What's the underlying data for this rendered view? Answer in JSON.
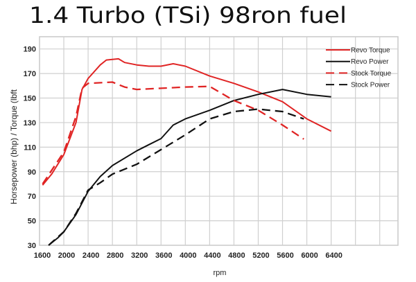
{
  "chart_data": {
    "type": "line",
    "title": "1.4 Turbo (TSi) 98ron fuel",
    "xlabel": "rpm",
    "ylabel": "Horsepower (bhp) / Torque (lbft",
    "xlim": [
      1600,
      7500
    ],
    "ylim": [
      30,
      200
    ],
    "xticks": [
      1600,
      2000,
      2400,
      2800,
      3200,
      3600,
      4000,
      4400,
      4800,
      5200,
      5600,
      6000,
      6400
    ],
    "yticks": [
      30,
      50,
      70,
      90,
      110,
      130,
      150,
      170,
      190
    ],
    "grid": true,
    "legend_position": "top-right",
    "series": [
      {
        "name": "Revo Torque",
        "color": "#e02424",
        "dash": false,
        "x": [
          1650,
          1800,
          2000,
          2200,
          2300,
          2400,
          2600,
          2700,
          2900,
          3000,
          3200,
          3400,
          3600,
          3800,
          4000,
          4400,
          4800,
          5200,
          5600,
          6000,
          6400
        ],
        "y": [
          79,
          88,
          104,
          130,
          157,
          166,
          177,
          181,
          182,
          179,
          177,
          176,
          176,
          178,
          176,
          168,
          162,
          155,
          147,
          133,
          123
        ]
      },
      {
        "name": "Revo Power",
        "color": "#111111",
        "dash": false,
        "x": [
          1750,
          1900,
          2000,
          2200,
          2400,
          2600,
          2800,
          3200,
          3400,
          3600,
          3800,
          4000,
          4400,
          4800,
          5200,
          5600,
          6000,
          6400
        ],
        "y": [
          30,
          36,
          41,
          55,
          74,
          86,
          95,
          107,
          112,
          117,
          128,
          133,
          140,
          148,
          153,
          157,
          153,
          151
        ]
      },
      {
        "name": "Stock Torque",
        "color": "#e02424",
        "dash": true,
        "x": [
          1650,
          2000,
          2200,
          2300,
          2400,
          2800,
          3000,
          3200,
          3600,
          4000,
          4400,
          4800,
          5200,
          5600,
          5950
        ],
        "y": [
          80,
          106,
          135,
          158,
          162,
          163,
          159,
          157,
          158,
          159,
          159.5,
          148,
          140,
          128,
          116.5
        ]
      },
      {
        "name": "Stock Power",
        "color": "#111111",
        "dash": true,
        "x": [
          1750,
          2000,
          2200,
          2400,
          2600,
          2800,
          3200,
          3600,
          4000,
          4400,
          4800,
          5200,
          5600,
          5950
        ],
        "y": [
          30,
          41,
          56,
          75,
          81,
          88,
          96,
          108,
          120,
          133,
          139,
          141,
          139,
          133
        ]
      }
    ]
  }
}
